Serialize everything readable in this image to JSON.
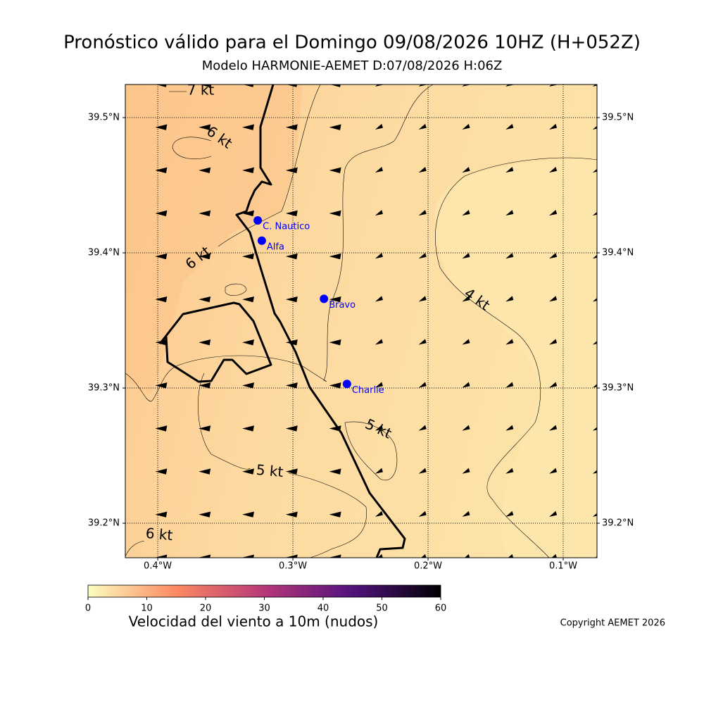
{
  "title": "Pronóstico válido para el Domingo 09/08/2026 10HZ (H+052Z)",
  "subtitle": "Modelo HARMONIE-AEMET D:07/08/2026 H:06Z",
  "map": {
    "xlim": [
      -0.424,
      -0.075
    ],
    "ylim": [
      39.1745,
      39.5245
    ],
    "xticks": [
      {
        "value": -0.4,
        "label": "0.4°W"
      },
      {
        "value": -0.3,
        "label": "0.3°W"
      },
      {
        "value": -0.2,
        "label": "0.2°W"
      },
      {
        "value": -0.1,
        "label": "0.1°W"
      }
    ],
    "yticks": [
      {
        "value": 39.2,
        "label": "39.2°N"
      },
      {
        "value": 39.3,
        "label": "39.3°N"
      },
      {
        "value": 39.4,
        "label": "39.4°N"
      },
      {
        "value": 39.5,
        "label": "39.5°N"
      }
    ],
    "station_color": "#0000ff",
    "stations": [
      {
        "name": "C. Nautico",
        "lon": -0.326,
        "lat": 39.424
      },
      {
        "name": "Alfa",
        "lon": -0.323,
        "lat": 39.409
      },
      {
        "name": "Bravo",
        "lon": -0.277,
        "lat": 39.366
      },
      {
        "name": "Charlie",
        "lon": -0.26,
        "lat": 39.303
      }
    ],
    "contour_labels": [
      "7 kt",
      "6 kt",
      "6 kt",
      "4 kt",
      "5 kt",
      "5 kt",
      "6 kt"
    ]
  },
  "colorbar": {
    "label": "Velocidad del viento a 10m (nudos)",
    "lim": [
      0,
      60
    ],
    "ticks": [
      0,
      10,
      20,
      30,
      40,
      50,
      60
    ],
    "colors": [
      "#fcfdbf",
      "#fc8961",
      "#b73779",
      "#51127c",
      "#000004"
    ]
  },
  "copyright": "Copyright AEMET 2026"
}
